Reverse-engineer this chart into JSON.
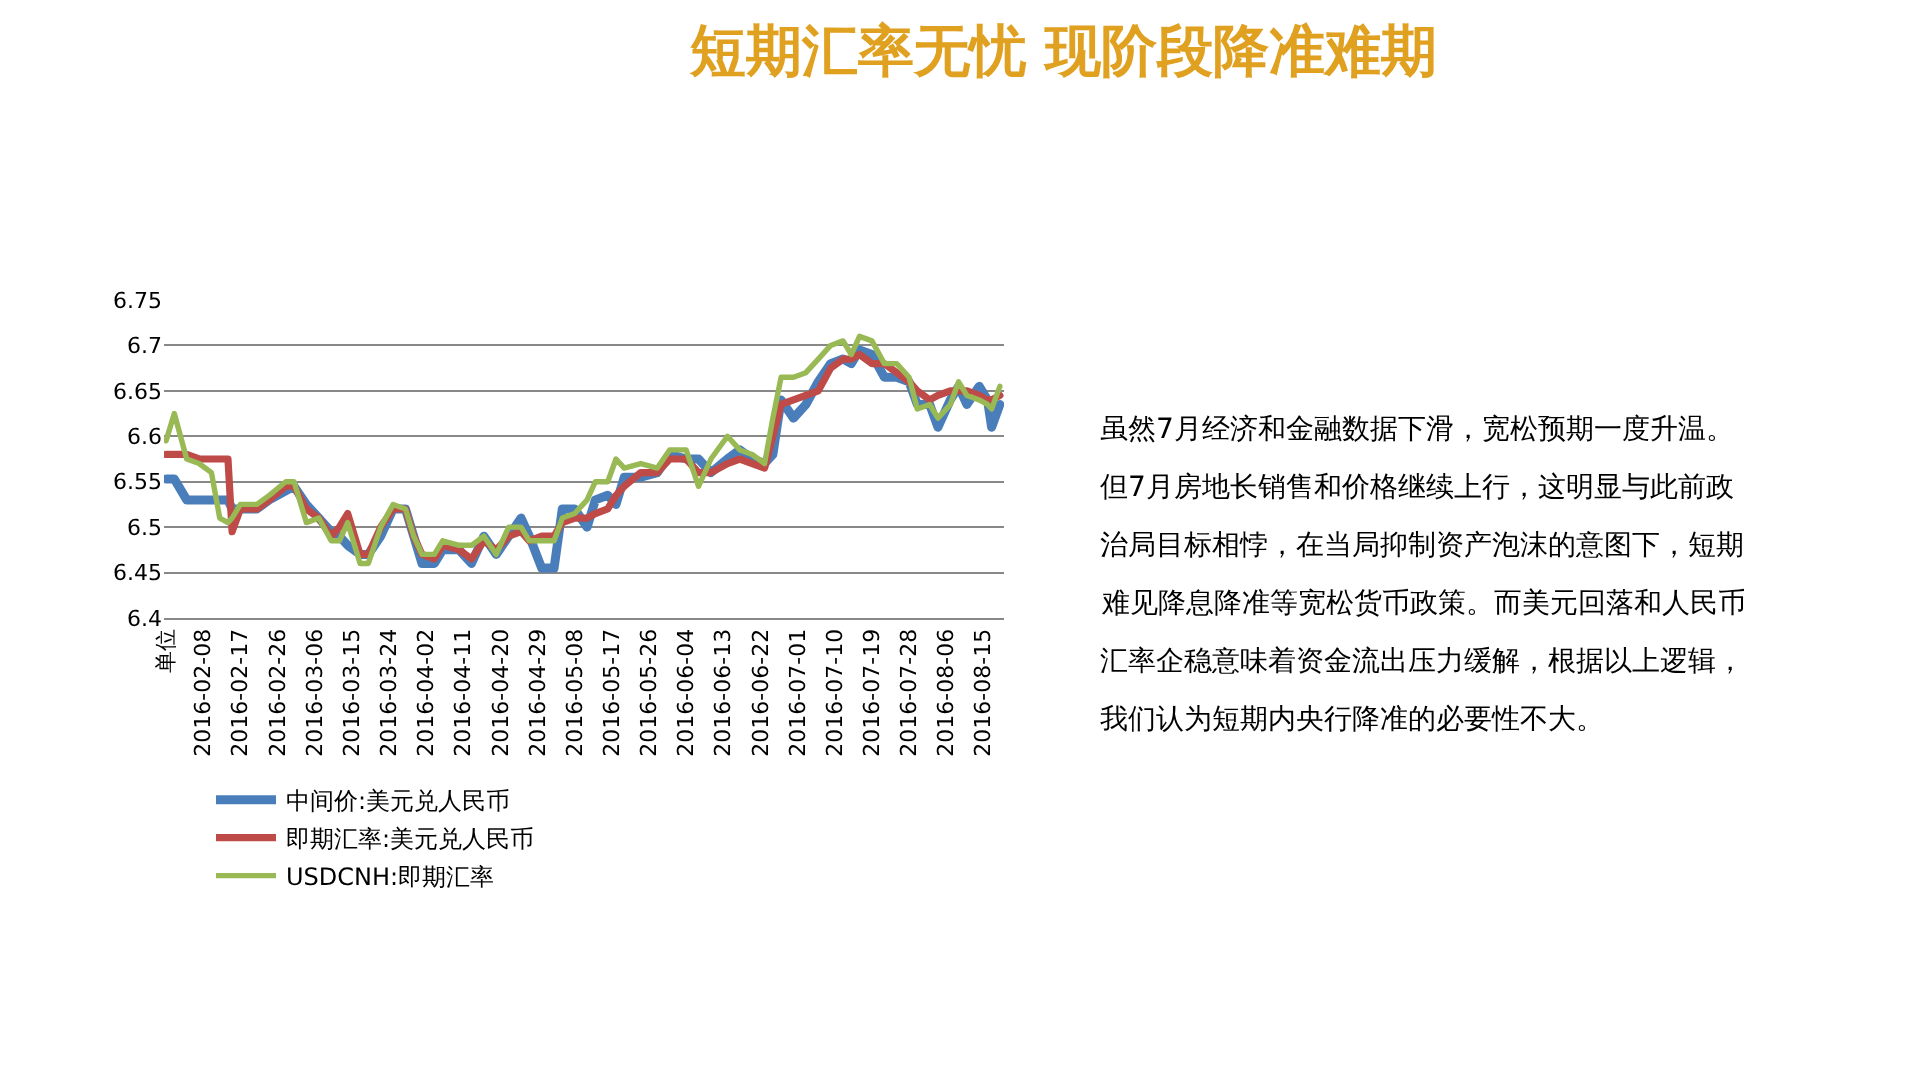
{
  "chart_data": {
    "type": "line",
    "title": "短期汇率无忧 现阶段降准难期",
    "x": [
      "2016-01-30",
      "2016-02-01",
      "2016-02-04",
      "2016-02-07",
      "2016-02-10",
      "2016-02-12",
      "2016-02-14",
      "2016-02-15",
      "2016-02-17",
      "2016-02-21",
      "2016-02-24",
      "2016-02-28",
      "2016-03-01",
      "2016-03-04",
      "2016-03-07",
      "2016-03-10",
      "2016-03-12",
      "2016-03-14",
      "2016-03-17",
      "2016-03-19",
      "2016-03-22",
      "2016-03-25",
      "2016-03-28",
      "2016-03-30",
      "2016-04-01",
      "2016-04-04",
      "2016-04-06",
      "2016-04-10",
      "2016-04-13",
      "2016-04-16",
      "2016-04-19",
      "2016-04-22",
      "2016-04-25",
      "2016-04-27",
      "2016-04-30",
      "2016-05-03",
      "2016-05-05",
      "2016-05-08",
      "2016-05-11",
      "2016-05-13",
      "2016-05-16",
      "2016-05-18",
      "2016-05-20",
      "2016-05-24",
      "2016-05-28",
      "2016-05-31",
      "2016-06-04",
      "2016-06-07",
      "2016-06-10",
      "2016-06-14",
      "2016-06-17",
      "2016-06-20",
      "2016-06-23",
      "2016-06-25",
      "2016-06-27",
      "2016-06-30",
      "2016-07-03",
      "2016-07-06",
      "2016-07-09",
      "2016-07-12",
      "2016-07-14",
      "2016-07-16",
      "2016-07-19",
      "2016-07-22",
      "2016-07-25",
      "2016-07-28",
      "2016-07-30",
      "2016-08-02",
      "2016-08-04",
      "2016-08-07",
      "2016-08-09",
      "2016-08-11",
      "2016-08-14",
      "2016-08-16",
      "2016-08-17",
      "2016-08-19"
    ],
    "series": [
      {
        "name": "中间价:美元兑人民币",
        "color": "#4a7ebb",
        "values": [
          6.553,
          6.553,
          6.53,
          6.53,
          6.53,
          6.53,
          6.53,
          6.52,
          6.52,
          6.52,
          6.53,
          6.54,
          6.545,
          6.525,
          6.51,
          6.495,
          6.49,
          6.48,
          6.47,
          6.47,
          6.49,
          6.52,
          6.52,
          6.49,
          6.46,
          6.46,
          6.475,
          6.475,
          6.46,
          6.49,
          6.47,
          6.49,
          6.51,
          6.49,
          6.455,
          6.455,
          6.52,
          6.52,
          6.5,
          6.53,
          6.535,
          6.525,
          6.555,
          6.555,
          6.56,
          6.58,
          6.575,
          6.575,
          6.56,
          6.575,
          6.585,
          6.575,
          6.57,
          6.58,
          6.64,
          6.62,
          6.635,
          6.66,
          6.68,
          6.685,
          6.68,
          6.695,
          6.69,
          6.665,
          6.665,
          6.66,
          6.635,
          6.635,
          6.61,
          6.64,
          6.655,
          6.635,
          6.655,
          6.64,
          6.61,
          6.635
        ]
      },
      {
        "name": "即期汇率:美元兑人民币",
        "color": "#be4b48",
        "values": [
          6.58,
          6.58,
          6.58,
          6.575,
          6.575,
          6.575,
          6.575,
          6.495,
          6.52,
          6.52,
          6.53,
          6.545,
          6.545,
          6.52,
          6.51,
          6.49,
          6.5,
          6.515,
          6.47,
          6.47,
          6.5,
          6.52,
          6.52,
          6.49,
          6.47,
          6.465,
          6.48,
          6.475,
          6.465,
          6.485,
          6.475,
          6.49,
          6.495,
          6.485,
          6.49,
          6.49,
          6.505,
          6.51,
          6.51,
          6.515,
          6.52,
          6.535,
          6.545,
          6.56,
          6.56,
          6.575,
          6.575,
          6.56,
          6.56,
          6.57,
          6.575,
          6.57,
          6.565,
          6.6,
          6.635,
          6.64,
          6.645,
          6.65,
          6.675,
          6.685,
          6.685,
          6.69,
          6.68,
          6.68,
          6.67,
          6.66,
          6.65,
          6.64,
          6.645,
          6.65,
          6.65,
          6.65,
          6.645,
          6.64,
          6.64,
          6.645
        ]
      },
      {
        "name": "USDCNH:即期汇率",
        "color": "#98b954",
        "values": [
          6.595,
          6.625,
          6.575,
          6.57,
          6.56,
          6.51,
          6.505,
          6.51,
          6.525,
          6.525,
          6.535,
          6.55,
          6.55,
          6.505,
          6.51,
          6.485,
          6.485,
          6.505,
          6.46,
          6.46,
          6.5,
          6.525,
          6.52,
          6.49,
          6.47,
          6.47,
          6.485,
          6.48,
          6.48,
          6.49,
          6.47,
          6.5,
          6.5,
          6.485,
          6.485,
          6.485,
          6.51,
          6.515,
          6.53,
          6.55,
          6.55,
          6.575,
          6.565,
          6.57,
          6.565,
          6.585,
          6.585,
          6.545,
          6.575,
          6.6,
          6.585,
          6.58,
          6.57,
          6.62,
          6.665,
          6.665,
          6.67,
          6.685,
          6.7,
          6.705,
          6.69,
          6.71,
          6.705,
          6.68,
          6.68,
          6.665,
          6.63,
          6.635,
          6.62,
          6.635,
          6.66,
          6.645,
          6.64,
          6.635,
          6.63,
          6.655
        ]
      }
    ],
    "xlim": [
      "2016-01-29T12:00",
      "2016-08-20"
    ],
    "xticks": [
      {
        "value": "2016-01-30",
        "label": "单位"
      },
      "2016-02-08",
      "2016-02-17",
      "2016-02-26",
      "2016-03-06",
      "2016-03-15",
      "2016-03-24",
      "2016-04-02",
      "2016-04-11",
      "2016-04-20",
      "2016-04-29",
      "2016-05-08",
      "2016-05-17",
      "2016-05-26",
      "2016-06-04",
      "2016-06-13",
      "2016-06-22",
      "2016-07-01",
      "2016-07-10",
      "2016-07-19",
      "2016-07-28",
      "2016-08-06",
      "2016-08-15"
    ],
    "ylim": [
      6.4,
      6.75
    ],
    "yticks": [
      6.4,
      6.45,
      6.5,
      6.55,
      6.6,
      6.65,
      6.7,
      6.75
    ],
    "grid": "y",
    "legend": "bottom",
    "marker": "none",
    "line_style": "solid",
    "annotations": [
      "虽然7月经济和金融数据下滑，宽松预期一度升温。",
      "但7月房地长销售和价格继续上行，这明显与此前政",
      "治局目标相悖，在当局抑制资产泡沫的意图下，短期",
      "难见降息降准等宽松货币政策。而美元回落和人民币",
      "汇率企稳意味着资金流出压力缓解，根据以上逻辑，",
      "我们认为短期内央行降准的必要性不大。"
    ]
  }
}
